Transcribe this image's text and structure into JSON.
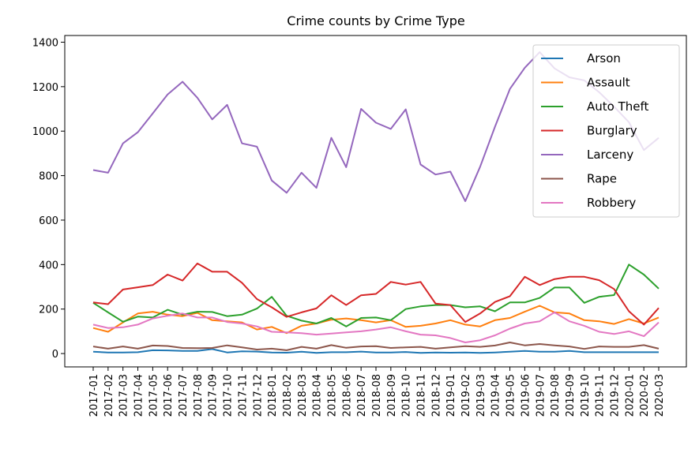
{
  "chart_data": {
    "type": "line",
    "title": "Crime counts by Crime Type",
    "xlabel": "",
    "ylabel": "",
    "ylim": [
      -60,
      1430
    ],
    "yticks": [
      0,
      200,
      400,
      600,
      800,
      1000,
      1200,
      1400
    ],
    "grid": false,
    "legend_position": "top-right",
    "categories": [
      "2017-01",
      "2017-02",
      "2017-03",
      "2017-04",
      "2017-05",
      "2017-06",
      "2017-07",
      "2017-08",
      "2017-09",
      "2017-10",
      "2017-11",
      "2017-12",
      "2018-01",
      "2018-02",
      "2018-03",
      "2018-04",
      "2018-05",
      "2018-06",
      "2018-07",
      "2018-08",
      "2018-09",
      "2018-10",
      "2018-11",
      "2018-12",
      "2019-01",
      "2019-02",
      "2019-03",
      "2019-04",
      "2019-05",
      "2019-06",
      "2019-07",
      "2019-08",
      "2019-09",
      "2019-10",
      "2019-11",
      "2019-12",
      "2020-01",
      "2020-02",
      "2020-03"
    ],
    "series": [
      {
        "name": "Arson",
        "color": "#1f77b4",
        "values": [
          8,
          5,
          5,
          6,
          15,
          14,
          12,
          12,
          20,
          5,
          10,
          9,
          5,
          4,
          8,
          3,
          6,
          6,
          9,
          5,
          5,
          7,
          3,
          5,
          4,
          5,
          3,
          5,
          8,
          12,
          8,
          8,
          12,
          6,
          6,
          6,
          6,
          6,
          6
        ]
      },
      {
        "name": "Assault",
        "color": "#ff7f0e",
        "values": [
          115,
          98,
          140,
          180,
          188,
          175,
          168,
          183,
          150,
          145,
          140,
          108,
          120,
          92,
          125,
          135,
          152,
          158,
          150,
          140,
          150,
          120,
          125,
          135,
          150,
          130,
          122,
          150,
          160,
          188,
          215,
          185,
          180,
          150,
          145,
          133,
          155,
          135,
          162
        ]
      },
      {
        "name": "Auto Theft",
        "color": "#2ca02c",
        "values": [
          228,
          185,
          143,
          166,
          162,
          197,
          175,
          188,
          187,
          168,
          175,
          202,
          255,
          170,
          148,
          135,
          160,
          122,
          160,
          162,
          150,
          200,
          212,
          218,
          218,
          208,
          212,
          190,
          230,
          230,
          250,
          297,
          297,
          228,
          255,
          263,
          400,
          355,
          292
        ]
      },
      {
        "name": "Burglary",
        "color": "#d62728",
        "values": [
          230,
          222,
          288,
          298,
          308,
          355,
          328,
          405,
          368,
          368,
          318,
          245,
          208,
          165,
          185,
          203,
          262,
          218,
          262,
          268,
          322,
          310,
          322,
          225,
          218,
          142,
          180,
          232,
          258,
          345,
          308,
          335,
          345,
          345,
          330,
          290,
          190,
          130,
          205
        ]
      },
      {
        "name": "Larceny",
        "color": "#9467bd",
        "values": [
          825,
          813,
          945,
          995,
          1080,
          1165,
          1222,
          1150,
          1053,
          1118,
          945,
          930,
          778,
          723,
          813,
          745,
          970,
          838,
          1100,
          1038,
          1010,
          1098,
          850,
          805,
          818,
          685,
          840,
          1020,
          1190,
          1285,
          1355,
          1282,
          1242,
          1228,
          1175,
          1110,
          1040,
          915,
          970
        ]
      },
      {
        "name": "Rape",
        "color": "#8c564b",
        "values": [
          32,
          22,
          32,
          22,
          36,
          34,
          25,
          24,
          25,
          37,
          28,
          18,
          22,
          15,
          30,
          22,
          38,
          26,
          32,
          33,
          25,
          28,
          30,
          22,
          28,
          33,
          30,
          36,
          50,
          37,
          43,
          37,
          32,
          21,
          32,
          30,
          30,
          38,
          22
        ]
      },
      {
        "name": "Robbery",
        "color": "#e377c2",
        "values": [
          130,
          115,
          118,
          130,
          158,
          170,
          180,
          162,
          162,
          142,
          135,
          122,
          98,
          95,
          92,
          85,
          90,
          95,
          100,
          108,
          118,
          100,
          85,
          82,
          70,
          50,
          60,
          82,
          112,
          135,
          145,
          185,
          145,
          125,
          98,
          88,
          100,
          78,
          140
        ]
      }
    ]
  }
}
